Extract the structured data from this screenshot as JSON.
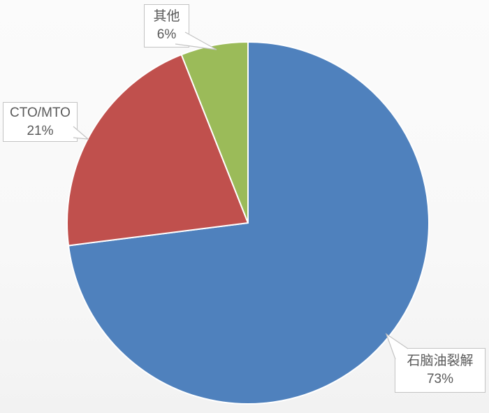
{
  "chart_data": {
    "type": "pie",
    "title": "",
    "legend": "none",
    "labels_style": "outside-callout-with-percent",
    "direction": "clockwise",
    "start_angle_deg": 0,
    "slice_separator_color": "#FFFFFF",
    "label_text_color": "#595959",
    "label_border_color": "#C3C3C3",
    "background_color": "#F8F8F8",
    "slices": [
      {
        "label": "石脑油裂解",
        "value": 73,
        "pct_label": "73%",
        "color": "#4F81BD"
      },
      {
        "label": "CTO/MTO",
        "value": 21,
        "pct_label": "21%",
        "color": "#C0504D"
      },
      {
        "label": "其他",
        "value": 6,
        "pct_label": "6%",
        "color": "#9BBB59"
      }
    ]
  }
}
